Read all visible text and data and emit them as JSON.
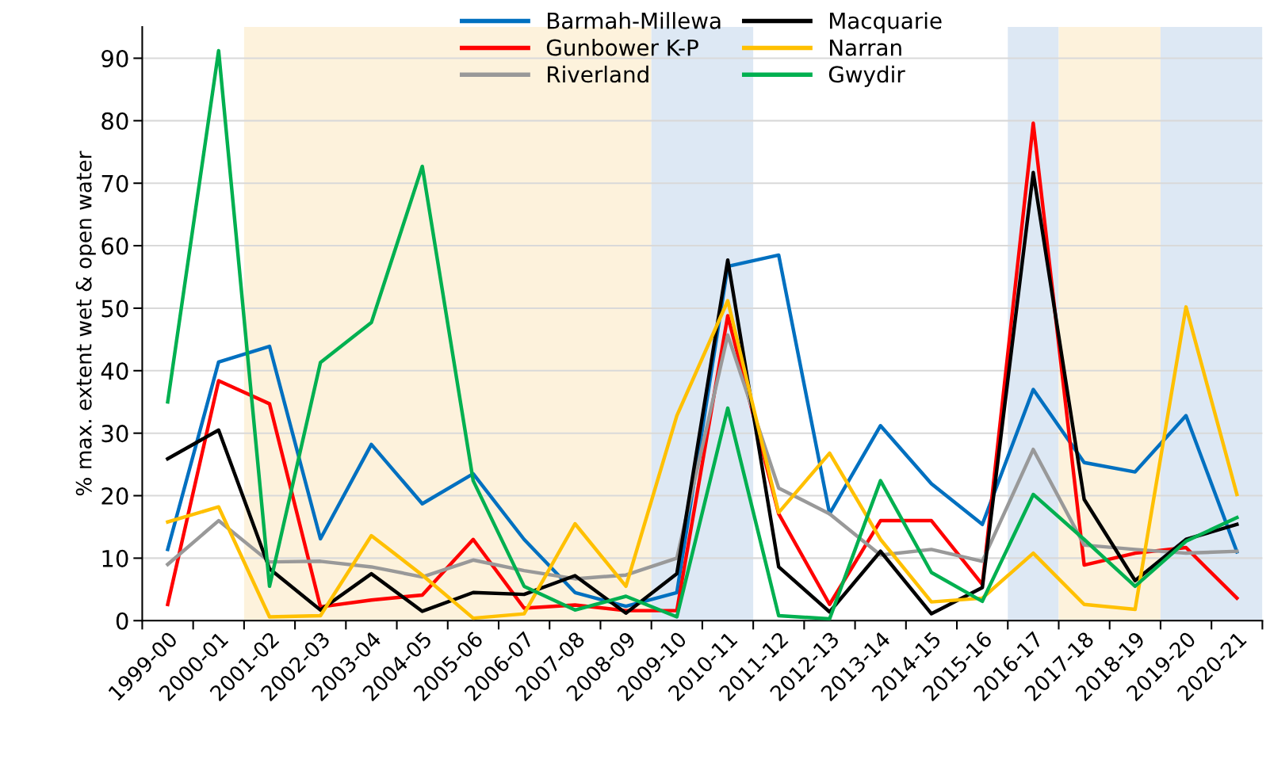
{
  "chart_data": {
    "type": "line",
    "ylabel": "% max. extent wet & open water",
    "categories": [
      "1999-00",
      "2000-01",
      "2001-02",
      "2002-03",
      "2003-04",
      "2004-05",
      "2005-06",
      "2006-07",
      "2007-08",
      "2008-09",
      "2009-10",
      "2010-11",
      "2011-12",
      "2012-13",
      "2013-14",
      "2014-15",
      "2015-16",
      "2016-17",
      "2017-18",
      "2018-19",
      "2019-20",
      "2020-21"
    ],
    "series": [
      {
        "name": "Barmah-Millewa",
        "color": "#0070c0",
        "values": [
          11.4,
          41.4,
          43.9,
          13.1,
          28.2,
          18.7,
          23.5,
          13.0,
          4.5,
          2.3,
          4.5,
          56.7,
          58.5,
          17.1,
          31.2,
          21.9,
          15.4,
          37.0,
          25.3,
          23.8,
          32.8,
          11.0
        ]
      },
      {
        "name": "Gunbower K-P",
        "color": "#ff0000",
        "values": [
          2.6,
          38.4,
          34.7,
          2.2,
          3.3,
          4.1,
          13.0,
          2.0,
          2.5,
          1.6,
          1.6,
          48.8,
          17.1,
          2.6,
          16.0,
          16.0,
          5.8,
          79.6,
          8.9,
          10.8,
          11.7,
          3.6
        ]
      },
      {
        "name": "Riverland",
        "color": "#999999",
        "values": [
          9.0,
          16.0,
          9.4,
          9.5,
          8.6,
          7.0,
          9.7,
          8.0,
          6.7,
          7.3,
          10.0,
          45.7,
          21.2,
          17.1,
          10.5,
          11.4,
          9.5,
          27.4,
          12.1,
          11.4,
          10.8,
          11.1
        ]
      },
      {
        "name": "Macquarie",
        "color": "#000000",
        "values": [
          25.9,
          30.5,
          8.3,
          1.7,
          7.5,
          1.5,
          4.5,
          4.2,
          7.2,
          1.2,
          7.5,
          57.7,
          8.6,
          1.4,
          11.1,
          1.1,
          5.3,
          71.7,
          19.4,
          6.4,
          13.0,
          15.4
        ]
      },
      {
        "name": "Narran",
        "color": "#ffc000",
        "values": [
          15.8,
          18.2,
          0.6,
          0.8,
          13.6,
          7.3,
          0.4,
          1.1,
          15.5,
          5.5,
          32.8,
          51.2,
          17.3,
          26.8,
          13.0,
          3.0,
          3.6,
          10.8,
          2.6,
          1.8,
          50.2,
          20.2
        ]
      },
      {
        "name": "Gwydir",
        "color": "#00b050",
        "values": [
          35.0,
          91.2,
          5.5,
          41.3,
          47.7,
          72.7,
          22.4,
          5.5,
          1.7,
          3.9,
          0.6,
          34.0,
          0.8,
          0.3,
          22.4,
          7.7,
          3.1,
          20.2,
          13.0,
          5.5,
          12.7,
          16.5
        ]
      }
    ],
    "bands": [
      {
        "axis": "x",
        "from": "2001-02",
        "to": "2008-09",
        "color": "#fdf2dc"
      },
      {
        "axis": "x",
        "from": "2009-10",
        "to": "2010-11",
        "color": "#dde8f4"
      },
      {
        "axis": "x",
        "from": "2016-17",
        "to": "2016-17",
        "color": "#dde8f4"
      },
      {
        "axis": "x",
        "from": "2017-18",
        "to": "2018-19",
        "color": "#fdf2dc"
      },
      {
        "axis": "x",
        "from": "2019-20",
        "to": "2020-21",
        "color": "#dde8f4"
      }
    ],
    "ylim": [
      0,
      95
    ],
    "yticks": [
      0,
      10,
      20,
      30,
      40,
      50,
      60,
      70,
      80,
      90
    ],
    "grid": "y",
    "legend": "top",
    "marker": "none",
    "line_style": "solid"
  }
}
